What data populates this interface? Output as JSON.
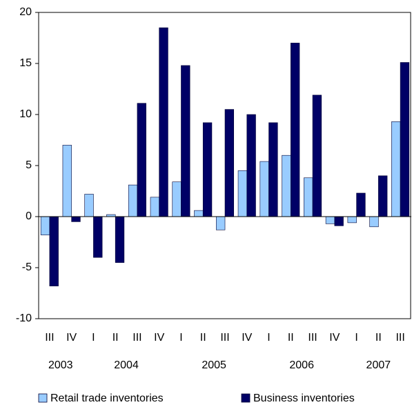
{
  "chart_data": {
    "type": "bar",
    "categories": [
      "III",
      "IV",
      "I",
      "II",
      "III",
      "IV",
      "I",
      "II",
      "III",
      "IV",
      "I",
      "II",
      "III",
      "IV",
      "I",
      "II",
      "III"
    ],
    "groups": [
      {
        "name": "2003",
        "size": 2
      },
      {
        "name": "2004",
        "size": 4
      },
      {
        "name": "2005",
        "size": 4
      },
      {
        "name": "2006",
        "size": 4
      },
      {
        "name": "2007",
        "size": 3
      }
    ],
    "series": [
      {
        "name": "Retail trade inventories",
        "color": "#99ccff",
        "values": [
          -1.8,
          7.0,
          2.2,
          0.2,
          3.1,
          1.9,
          3.4,
          0.6,
          -1.3,
          4.5,
          5.4,
          6.0,
          3.8,
          -0.7,
          -0.6,
          -1.0,
          9.3
        ]
      },
      {
        "name": "Business inventories",
        "color": "#000066",
        "values": [
          -6.8,
          -0.5,
          -4.0,
          -4.5,
          11.1,
          18.5,
          14.8,
          9.2,
          10.5,
          10.0,
          9.2,
          17.0,
          11.9,
          -0.9,
          2.3,
          4.0,
          15.1
        ]
      }
    ],
    "ylim": [
      -10,
      20
    ],
    "yticks": [
      -10,
      -5,
      0,
      5,
      10,
      15,
      20
    ],
    "grid": false,
    "legend": "bottom"
  }
}
